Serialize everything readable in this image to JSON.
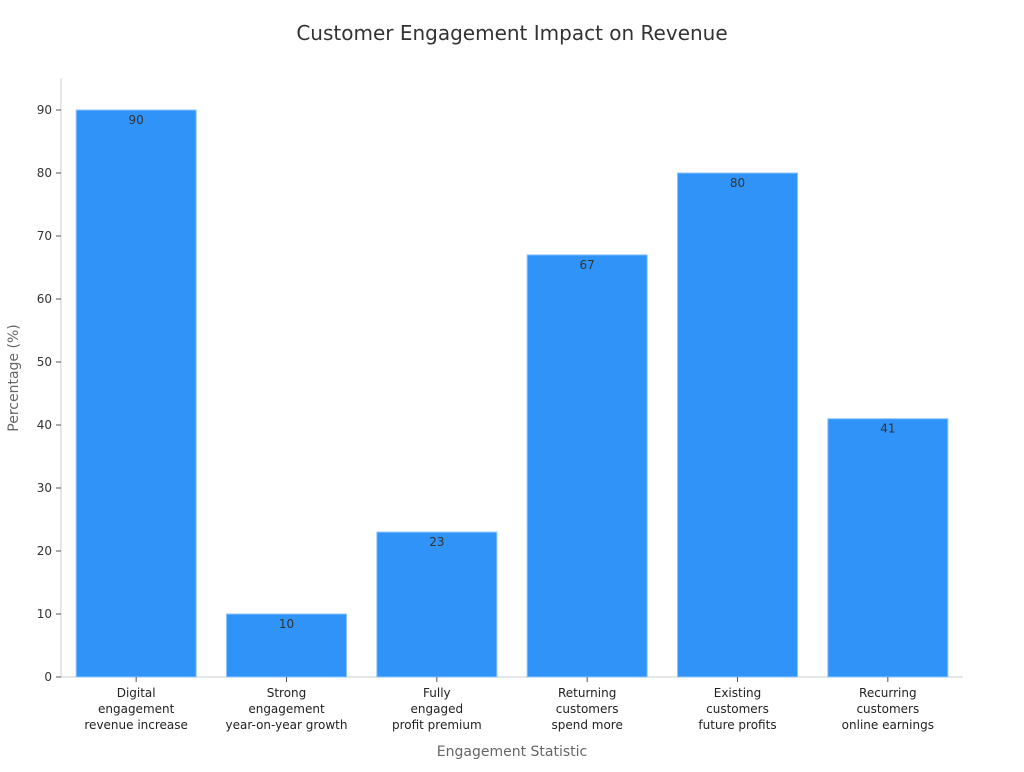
{
  "chart_data": {
    "type": "bar",
    "title": "Customer Engagement Impact on Revenue",
    "xlabel": "Engagement Statistic",
    "ylabel": "Percentage (%)",
    "categories": [
      [
        "Digital",
        "engagement",
        "revenue increase"
      ],
      [
        "Strong",
        "engagement",
        "year-on-year growth"
      ],
      [
        "Fully",
        "engaged",
        "profit premium"
      ],
      [
        "Returning",
        "customers",
        "spend more"
      ],
      [
        "Existing",
        "customers",
        "future profits"
      ],
      [
        "Recurring",
        "customers",
        "online earnings"
      ]
    ],
    "values": [
      90,
      10,
      23,
      67,
      80,
      41
    ],
    "ylim": [
      0,
      95
    ],
    "yticks": [
      0,
      10,
      20,
      30,
      40,
      50,
      60,
      70,
      80,
      90
    ],
    "grid": false,
    "bar_color": "#2f93f8",
    "data_labels": true
  }
}
